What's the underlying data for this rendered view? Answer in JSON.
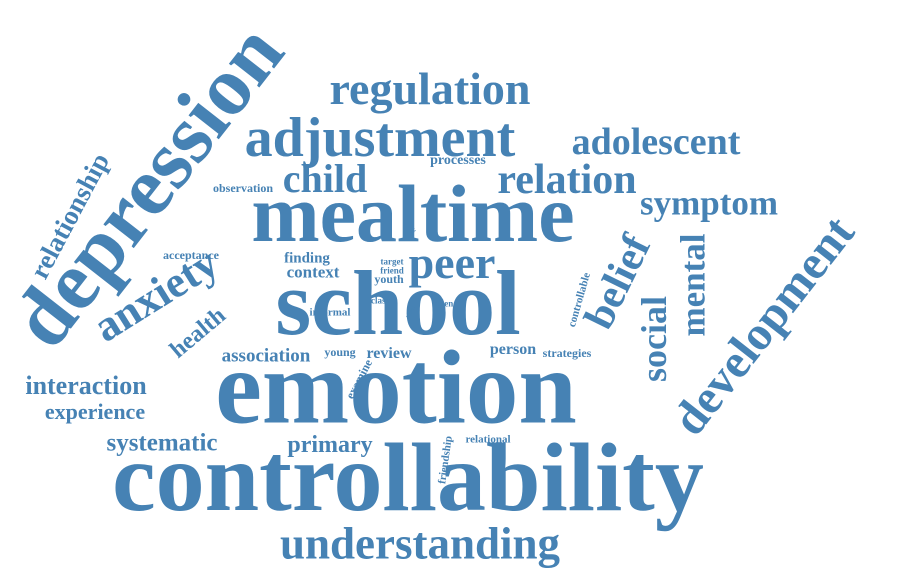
{
  "color": "#4682b4",
  "words": [
    {
      "key": "controllability",
      "text": "controllability"
    },
    {
      "key": "emotion",
      "text": "emotion"
    },
    {
      "key": "school",
      "text": "school"
    },
    {
      "key": "mealtime",
      "text": "mealtime"
    },
    {
      "key": "depression",
      "text": "depression"
    },
    {
      "key": "adjustment",
      "text": "adjustment"
    },
    {
      "key": "regulation",
      "text": "regulation"
    },
    {
      "key": "understanding",
      "text": "understanding"
    },
    {
      "key": "development",
      "text": "development"
    },
    {
      "key": "anxiety",
      "text": "anxiety"
    },
    {
      "key": "peer",
      "text": "peer"
    },
    {
      "key": "adolescent",
      "text": "adolescent"
    },
    {
      "key": "relation",
      "text": "relation"
    },
    {
      "key": "child",
      "text": "child"
    },
    {
      "key": "symptom",
      "text": "symptom"
    },
    {
      "key": "belief",
      "text": "belief"
    },
    {
      "key": "social",
      "text": "social"
    },
    {
      "key": "mental",
      "text": "mental"
    },
    {
      "key": "relationship",
      "text": "relationship"
    },
    {
      "key": "interaction",
      "text": "interaction"
    },
    {
      "key": "systematic",
      "text": "systematic"
    },
    {
      "key": "primary",
      "text": "primary"
    },
    {
      "key": "experience",
      "text": "experience"
    },
    {
      "key": "health",
      "text": "health"
    },
    {
      "key": "association",
      "text": "association"
    },
    {
      "key": "context",
      "text": "context"
    },
    {
      "key": "finding",
      "text": "finding"
    },
    {
      "key": "review",
      "text": "review"
    },
    {
      "key": "person",
      "text": "person"
    },
    {
      "key": "young",
      "text": "young"
    },
    {
      "key": "processes",
      "text": "processes"
    },
    {
      "key": "observation",
      "text": "observation"
    },
    {
      "key": "acceptance",
      "text": "acceptance"
    },
    {
      "key": "informal",
      "text": "informal"
    },
    {
      "key": "strategies",
      "text": "strategies"
    },
    {
      "key": "controllable",
      "text": "controllable"
    },
    {
      "key": "friendship",
      "text": "friendship"
    },
    {
      "key": "relational",
      "text": "relational"
    },
    {
      "key": "examine",
      "text": "examine"
    },
    {
      "key": "youth",
      "text": "youth"
    },
    {
      "key": "target",
      "text": "target"
    },
    {
      "key": "friend",
      "text": "friend"
    },
    {
      "key": "class",
      "text": "class"
    },
    {
      "key": "open",
      "text": "open"
    },
    {
      "key": "etc",
      "text": "etc"
    },
    {
      "key": "video",
      "text": "video"
    }
  ]
}
